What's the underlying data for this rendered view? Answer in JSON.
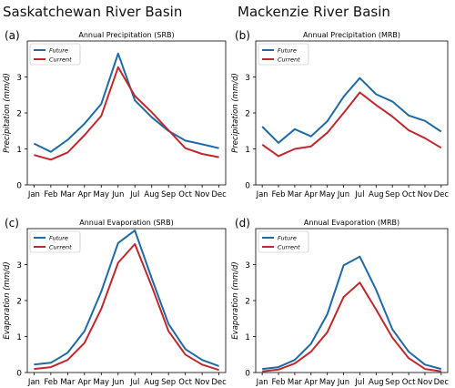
{
  "headers": {
    "left": "Saskatchewan River Basin",
    "right": "Mackenzie River Basin"
  },
  "colors": {
    "future": "#1f6aa5",
    "current": "#c0282d"
  },
  "chart_data": [
    {
      "type": "line",
      "panel": "(a)",
      "title": "Annual Precipitation (SRB)",
      "ylabel": "Precipitation (mm/d)",
      "xlabel": "",
      "categories": [
        "Jan",
        "Feb",
        "Mar",
        "Apr",
        "May",
        "Jun",
        "Jul",
        "Aug",
        "Sep",
        "Oct",
        "Nov",
        "Dec"
      ],
      "ylim": [
        0,
        4
      ],
      "yticks": [
        0,
        1,
        2,
        3
      ],
      "legend": "top-left",
      "series": [
        {
          "name": "Future",
          "values": [
            1.15,
            0.92,
            1.25,
            1.7,
            2.25,
            3.65,
            2.35,
            1.88,
            1.5,
            1.23,
            1.13,
            1.02
          ]
        },
        {
          "name": "Current",
          "values": [
            0.83,
            0.7,
            0.9,
            1.38,
            1.92,
            3.27,
            2.47,
            2.02,
            1.52,
            1.02,
            0.86,
            0.77
          ]
        }
      ]
    },
    {
      "type": "line",
      "panel": "(b)",
      "title": "Annual Precipitation (MRB)",
      "ylabel": "Precipitation (mm/d)",
      "xlabel": "",
      "categories": [
        "Jan",
        "Feb",
        "Mar",
        "Apr",
        "May",
        "Jun",
        "Jul",
        "Aug",
        "Sep",
        "Oct",
        "Nov",
        "Dec"
      ],
      "ylim": [
        0,
        4
      ],
      "yticks": [
        0,
        1,
        2,
        3
      ],
      "legend": "top-left",
      "series": [
        {
          "name": "Future",
          "values": [
            1.62,
            1.17,
            1.55,
            1.35,
            1.77,
            2.45,
            2.97,
            2.52,
            2.32,
            1.93,
            1.78,
            1.48
          ]
        },
        {
          "name": "Current",
          "values": [
            1.12,
            0.8,
            1.0,
            1.07,
            1.45,
            2.0,
            2.57,
            2.22,
            1.9,
            1.52,
            1.3,
            1.03
          ]
        }
      ]
    },
    {
      "type": "line",
      "panel": "(c)",
      "title": "Annual Evaporation (SRB)",
      "ylabel": "Evaporation (mm/d)",
      "xlabel": "",
      "categories": [
        "Jan",
        "Feb",
        "Mar",
        "Apr",
        "May",
        "Jun",
        "Jul",
        "Aug",
        "Sep",
        "Oct",
        "Nov",
        "Dec"
      ],
      "ylim": [
        0,
        4
      ],
      "yticks": [
        0,
        1,
        2,
        3
      ],
      "legend": "top-left",
      "series": [
        {
          "name": "Future",
          "values": [
            0.22,
            0.27,
            0.55,
            1.15,
            2.25,
            3.6,
            3.95,
            2.62,
            1.35,
            0.65,
            0.35,
            0.18
          ]
        },
        {
          "name": "Current",
          "values": [
            0.1,
            0.15,
            0.35,
            0.82,
            1.77,
            3.05,
            3.57,
            2.4,
            1.15,
            0.5,
            0.22,
            0.07
          ]
        }
      ]
    },
    {
      "type": "line",
      "panel": "(d)",
      "title": "Annual Evaporation (MRB)",
      "ylabel": "Evaporation (mm/d)",
      "xlabel": "",
      "categories": [
        "Jan",
        "Feb",
        "Mar",
        "Apr",
        "May",
        "Jun",
        "Jul",
        "Aug",
        "Sep",
        "Oct",
        "Nov",
        "Dec"
      ],
      "ylim": [
        0,
        4
      ],
      "yticks": [
        0,
        1,
        2,
        3
      ],
      "legend": "top-left",
      "series": [
        {
          "name": "Future",
          "values": [
            0.1,
            0.15,
            0.35,
            0.8,
            1.62,
            2.98,
            3.22,
            2.3,
            1.2,
            0.58,
            0.22,
            0.1
          ]
        },
        {
          "name": "Current",
          "values": [
            0.03,
            0.08,
            0.25,
            0.58,
            1.12,
            2.1,
            2.5,
            1.75,
            0.97,
            0.4,
            0.1,
            0.03
          ]
        }
      ]
    }
  ]
}
